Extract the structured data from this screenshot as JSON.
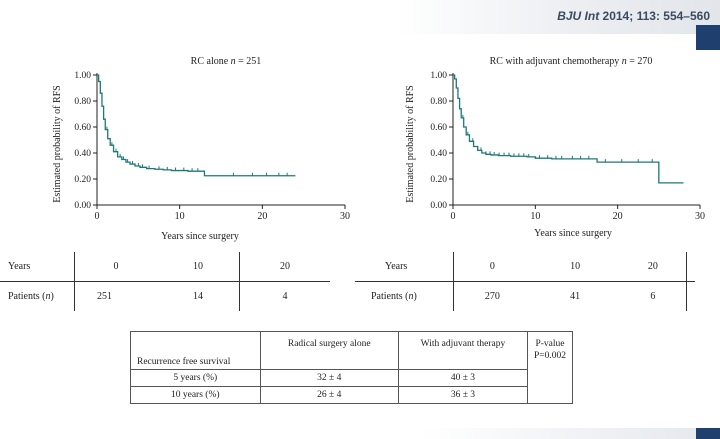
{
  "header": {
    "journal": "BJU Int",
    "year": "2014;",
    "volume": "113:",
    "pages": "554–560"
  },
  "chart_data": [
    {
      "type": "line",
      "title": "RC alone n = 251",
      "title_prefix": "RC alone ",
      "title_n": "n",
      "title_suffix": " = 251",
      "xlabel": "Years since surgery",
      "ylabel": "Estimated probability of RFS",
      "xlim": [
        0,
        30
      ],
      "ylim": [
        0,
        1
      ],
      "xticks": [
        "0",
        "10",
        "20",
        "30"
      ],
      "yticks": [
        "0.00",
        "0.20",
        "0.40",
        "0.60",
        "0.80",
        "1.00"
      ],
      "color": "#1e7878",
      "series": [
        {
          "x": [
            0,
            0.2,
            0.4,
            0.6,
            0.8,
            1.0,
            1.3,
            1.6,
            2.0,
            2.5,
            3.0,
            3.5,
            4.0,
            4.6,
            5.2,
            6.0,
            7.0,
            8.0,
            9.0,
            11.0,
            13.0,
            15.0,
            18.0,
            21.0,
            24.0
          ],
          "y": [
            1.0,
            0.95,
            0.86,
            0.76,
            0.66,
            0.58,
            0.51,
            0.46,
            0.41,
            0.37,
            0.35,
            0.33,
            0.315,
            0.3,
            0.29,
            0.28,
            0.275,
            0.27,
            0.265,
            0.26,
            0.225,
            0.225,
            0.225,
            0.225,
            0.225
          ]
        }
      ],
      "censor_x": [
        1.2,
        1.8,
        2.3,
        2.8,
        3.2,
        3.7,
        4.3,
        5.0,
        5.5,
        6.3,
        7.5,
        8.5,
        9.5,
        10.5,
        11.5,
        12.2,
        16.5,
        18.8,
        20.5,
        22.0,
        23.0
      ]
    },
    {
      "type": "line",
      "title": "RC with adjuvant chemotherapy n = 270",
      "title_prefix": "RC with adjuvant chemotherapy ",
      "title_n": "n",
      "title_suffix": " = 270",
      "xlabel": "Years since surgery",
      "ylabel": "Estimated probability of RFS",
      "xlim": [
        0,
        30
      ],
      "ylim": [
        0,
        1
      ],
      "xticks": [
        "0",
        "10",
        "20",
        "30"
      ],
      "yticks": [
        "0.00",
        "0.20",
        "0.40",
        "0.60",
        "0.80",
        "1.00"
      ],
      "color": "#1e7878",
      "series": [
        {
          "x": [
            0,
            0.2,
            0.4,
            0.6,
            0.8,
            1.0,
            1.3,
            1.6,
            2.0,
            2.5,
            3.0,
            3.5,
            4.0,
            4.6,
            5.5,
            7.0,
            9.0,
            10.0,
            12.0,
            14.0,
            17.5,
            20.0,
            24.0,
            25.0,
            28.0
          ],
          "y": [
            1.0,
            0.97,
            0.9,
            0.82,
            0.74,
            0.67,
            0.6,
            0.54,
            0.49,
            0.45,
            0.42,
            0.4,
            0.39,
            0.385,
            0.38,
            0.375,
            0.37,
            0.36,
            0.355,
            0.355,
            0.33,
            0.33,
            0.33,
            0.17,
            0.17
          ]
        }
      ],
      "censor_x": [
        1.2,
        1.8,
        2.4,
        3.0,
        3.4,
        4.0,
        4.5,
        5.0,
        5.6,
        6.2,
        6.8,
        7.4,
        8.0,
        8.6,
        9.2,
        10.5,
        11.5,
        12.5,
        13.2,
        14.5,
        15.5,
        16.5,
        18.5,
        20.5,
        22.5,
        24.2
      ]
    }
  ],
  "km_tables": [
    {
      "row1_label": "Years",
      "row2_label_prefix": "Patients (",
      "row2_label_n": "n",
      "row2_label_suffix": ")",
      "years": [
        "0",
        "10",
        "20"
      ],
      "patients": [
        "251",
        "14",
        "4"
      ]
    },
    {
      "row1_label": "Years",
      "row2_label_prefix": "Patients (",
      "row2_label_n": "n",
      "row2_label_suffix": ")",
      "years": [
        "0",
        "10",
        "20"
      ],
      "patients": [
        "270",
        "41",
        "6"
      ]
    }
  ],
  "rfs_table": {
    "corner": "Recurrence free survival",
    "col1": "Radical surgery alone",
    "col2": "With adjuvant therapy",
    "col3": "P-value",
    "p_value": "P=0.002",
    "rows": [
      {
        "label": "5 years (%)",
        "a": "32 ± 4",
        "b": "40 ± 3"
      },
      {
        "label": "10 years (%)",
        "a": "26 ± 4",
        "b": "36 ± 3"
      }
    ]
  }
}
